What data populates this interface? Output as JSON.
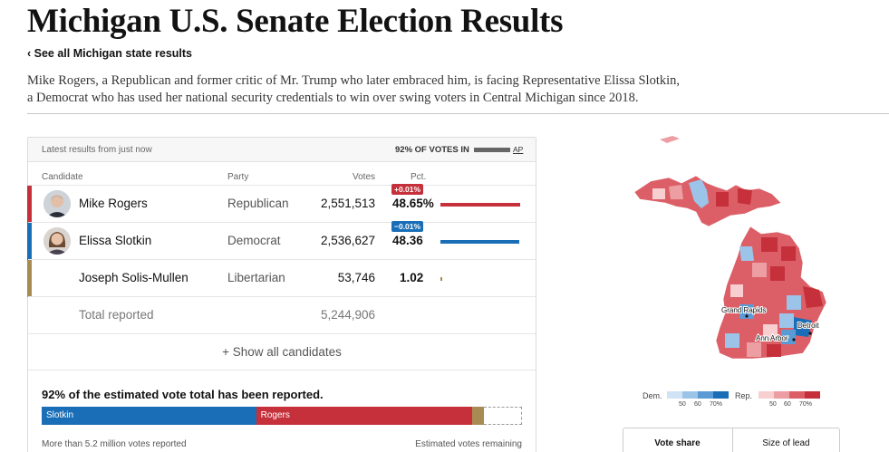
{
  "page": {
    "title": "Michigan U.S. Senate Election Results",
    "back_link": "‹ See all Michigan state results",
    "dek": "Mike Rogers, a Republican and former critic of Mr. Trump who later embraced him, is facing Representative Elissa Slotkin, a Democrat who has used her national security credentials to win over swing voters in Central Michigan since 2018."
  },
  "results": {
    "updated": "Latest results from just now",
    "pct_in": "92% OF VOTES IN",
    "source": "AP",
    "headers": {
      "candidate": "Candidate",
      "party": "Party",
      "votes": "Votes",
      "pct": "Pct."
    },
    "candidates": [
      {
        "name": "Mike Rogers",
        "party": "Republican",
        "votes": "2,551,513",
        "pct": "48.65%",
        "pct_value": 48.65,
        "change": "+0.01%",
        "color": "#c5303b"
      },
      {
        "name": "Elissa Slotkin",
        "party": "Democrat",
        "votes": "2,536,627",
        "pct": "48.36",
        "pct_value": 48.36,
        "change": "−0.01%",
        "color": "#1a6eb7"
      },
      {
        "name": "Joseph Solis-Mullen",
        "party": "Libertarian",
        "votes": "53,746",
        "pct": "1.02",
        "pct_value": 1.02,
        "change": "",
        "color": "#a88b52"
      }
    ],
    "total_label": "Total reported",
    "total_votes": "5,244,906",
    "show_all": "+ Show all candidates"
  },
  "estimate": {
    "headline": "92% of the estimated vote total has been reported.",
    "reported_fraction": 0.92,
    "segments": [
      {
        "label": "Slotkin",
        "share": 0.4465,
        "color": "#1a6eb7"
      },
      {
        "label": "Rogers",
        "share": 0.4491,
        "color": "#c5303b"
      },
      {
        "label": "",
        "share": 0.0244,
        "color": "#a88b52"
      }
    ],
    "foot_left": "More than 5.2 million votes reported",
    "foot_right": "Estimated votes remaining"
  },
  "map": {
    "cities": [
      "Grand Rapids",
      "Detroit",
      "Ann Arbor"
    ]
  },
  "legend": {
    "dem_label": "Dem.",
    "rep_label": "Rep.",
    "ticks": [
      "50",
      "60",
      "70%"
    ],
    "dem_colors": [
      "#cfe3f5",
      "#9cc4e8",
      "#5b9bd5",
      "#1a6eb7"
    ],
    "rep_colors": [
      "#f7cfd1",
      "#ec9ea3",
      "#dc5f67",
      "#c5303b"
    ]
  },
  "toggle": {
    "options": [
      "Vote share",
      "Size of lead"
    ],
    "active": "Vote share"
  }
}
